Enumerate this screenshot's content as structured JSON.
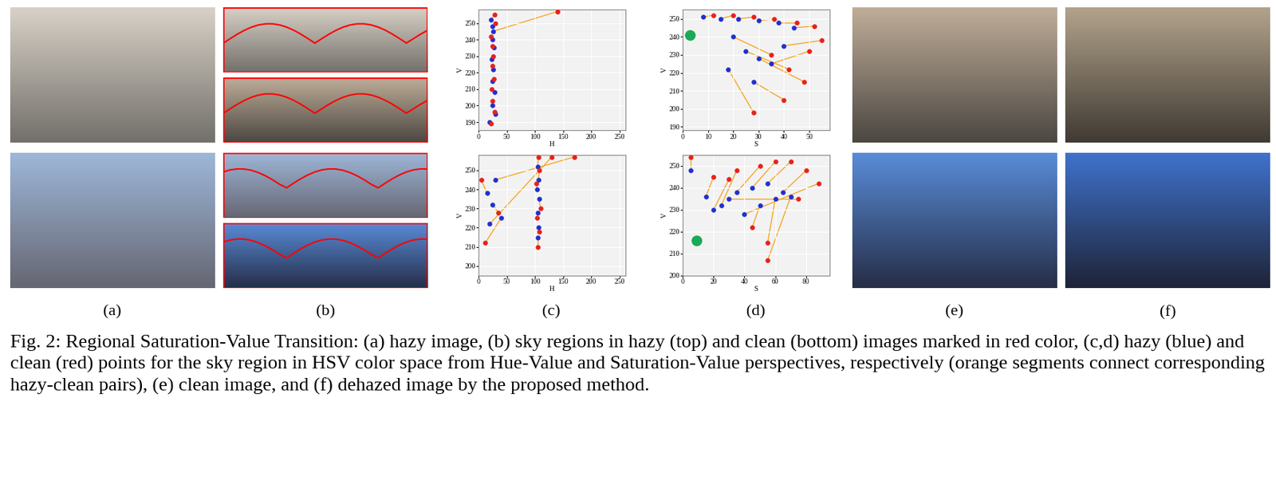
{
  "panel_labels": [
    "(a)",
    "(b)",
    "(c)",
    "(d)",
    "(e)",
    "(f)"
  ],
  "caption": "Fig. 2: Regional Saturation-Value Transition: (a) hazy image, (b) sky regions in hazy (top) and clean (bottom) images marked in red color, (c,d) hazy (blue) and clean (red) points for the sky region in HSV color space from Hue-Value and Saturation-Value perspectives, respectively (orange segments connect corresponding hazy-clean pairs), (e) clean image, and (f) dehazed image by the proposed method.",
  "chart_data": [
    {
      "type": "scatter",
      "xlabel": "H",
      "ylabel": "V",
      "xlim": [
        0,
        260
      ],
      "ylim": [
        185,
        258
      ],
      "xticks": [
        0,
        50,
        100,
        150,
        200,
        250
      ],
      "yticks": [
        190,
        200,
        210,
        220,
        230,
        240,
        250
      ],
      "series": [
        {
          "color": "#1f2fd0",
          "marker": "o",
          "x": [
            22,
            25,
            24,
            27,
            23,
            26,
            25,
            28,
            24,
            30,
            20,
            26
          ],
          "values": [
            252,
            248,
            240,
            235,
            228,
            222,
            215,
            208,
            200,
            195,
            190,
            245
          ]
        },
        {
          "color": "#e8201a",
          "marker": "o",
          "x": [
            28,
            30,
            22,
            25,
            26,
            24,
            27,
            23,
            25,
            29,
            22,
            140
          ],
          "values": [
            255,
            250,
            242,
            236,
            230,
            224,
            216,
            210,
            203,
            196,
            189,
            257
          ]
        }
      ]
    },
    {
      "type": "scatter",
      "xlabel": "S",
      "ylabel": "V",
      "xlim": [
        0,
        58
      ],
      "ylim": [
        188,
        255
      ],
      "xticks": [
        0,
        10,
        20,
        30,
        40,
        50
      ],
      "yticks": [
        190,
        200,
        210,
        220,
        230,
        240,
        250
      ],
      "series": [
        {
          "color": "#1f2fd0",
          "marker": "o",
          "x": [
            8,
            15,
            22,
            30,
            38,
            44,
            20,
            25,
            30,
            35,
            40,
            28,
            18
          ],
          "values": [
            251,
            250,
            250,
            249,
            248,
            245,
            240,
            232,
            228,
            225,
            235,
            215,
            222
          ]
        },
        {
          "color": "#e8201a",
          "marker": "o",
          "x": [
            12,
            20,
            28,
            36,
            45,
            52,
            35,
            42,
            48,
            50,
            55,
            40,
            28
          ],
          "values": [
            252,
            252,
            251,
            250,
            248,
            246,
            230,
            222,
            215,
            232,
            238,
            205,
            198
          ]
        },
        {
          "color": "#1aaa55",
          "marker": "o",
          "x": [
            3
          ],
          "values": [
            241
          ]
        }
      ]
    },
    {
      "type": "scatter",
      "xlabel": "H",
      "ylabel": "V",
      "xlim": [
        0,
        260
      ],
      "ylim": [
        195,
        258
      ],
      "xticks": [
        0,
        50,
        100,
        150,
        200,
        250
      ],
      "yticks": [
        200,
        210,
        220,
        230,
        240,
        250
      ],
      "series": [
        {
          "color": "#1f2fd0",
          "marker": "o",
          "x": [
            105,
            106,
            104,
            107,
            105,
            106,
            15,
            25,
            40,
            30,
            20,
            105
          ],
          "values": [
            252,
            245,
            240,
            235,
            228,
            220,
            238,
            232,
            225,
            245,
            222,
            215
          ]
        },
        {
          "color": "#e8201a",
          "marker": "o",
          "x": [
            106,
            108,
            103,
            110,
            104,
            107,
            5,
            35,
            12,
            170,
            130,
            105
          ],
          "values": [
            257,
            250,
            243,
            230,
            225,
            218,
            245,
            228,
            212,
            257,
            257,
            210
          ]
        }
      ]
    },
    {
      "type": "scatter",
      "xlabel": "S",
      "ylabel": "V",
      "xlim": [
        0,
        95
      ],
      "ylim": [
        200,
        255
      ],
      "xticks": [
        0,
        20,
        40,
        60,
        80
      ],
      "yticks": [
        200,
        210,
        220,
        230,
        240,
        250
      ],
      "series": [
        {
          "color": "#1f2fd0",
          "marker": "o",
          "x": [
            5,
            15,
            25,
            35,
            45,
            55,
            65,
            40,
            50,
            60,
            30,
            20,
            70
          ],
          "values": [
            248,
            236,
            232,
            238,
            240,
            242,
            238,
            228,
            232,
            235,
            235,
            230,
            236
          ]
        },
        {
          "color": "#e8201a",
          "marker": "o",
          "x": [
            5,
            20,
            35,
            50,
            60,
            70,
            80,
            88,
            45,
            55,
            75,
            30,
            55
          ],
          "values": [
            254,
            245,
            248,
            250,
            252,
            252,
            248,
            242,
            222,
            215,
            235,
            244,
            207
          ]
        },
        {
          "color": "#1aaa55",
          "marker": "o",
          "x": [
            9
          ],
          "values": [
            216
          ]
        }
      ]
    }
  ]
}
